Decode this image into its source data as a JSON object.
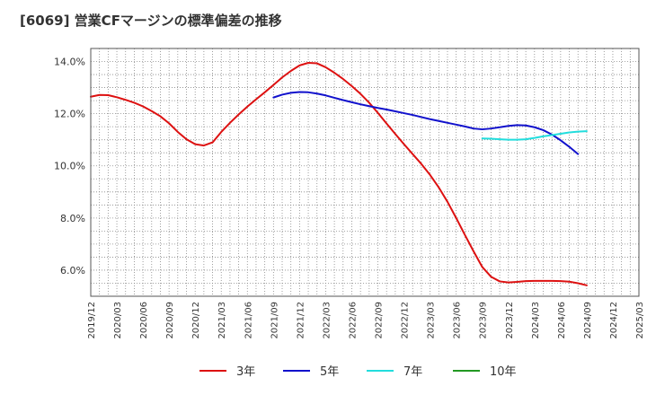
{
  "chart_data": {
    "type": "line",
    "title": "[6069]  営業CFマージンの標準偏差の推移",
    "xlabel": "",
    "ylabel": "",
    "ylim": [
      5.0,
      14.5
    ],
    "y_ticks": [
      "6.0%",
      "8.0%",
      "10.0%",
      "12.0%",
      "14.0%"
    ],
    "y_tick_values": [
      6,
      8,
      10,
      12,
      14
    ],
    "x_ticks": [
      "2019/12",
      "2020/03",
      "2020/06",
      "2020/09",
      "2020/12",
      "2021/03",
      "2021/06",
      "2021/09",
      "2021/12",
      "2022/03",
      "2022/06",
      "2022/09",
      "2022/12",
      "2023/03",
      "2023/06",
      "2023/09",
      "2023/12",
      "2024/03",
      "2024/06",
      "2024/09",
      "2024/12",
      "2025/03"
    ],
    "grid": true,
    "legend_position": "bottom",
    "series": [
      {
        "name": "3年",
        "color": "#dd1111",
        "points": [
          [
            "2019/12",
            12.65
          ],
          [
            "2020/01",
            12.72
          ],
          [
            "2020/02",
            12.71
          ],
          [
            "2020/03",
            12.63
          ],
          [
            "2020/04",
            12.53
          ],
          [
            "2020/05",
            12.42
          ],
          [
            "2020/06",
            12.28
          ],
          [
            "2020/07",
            12.1
          ],
          [
            "2020/08",
            11.9
          ],
          [
            "2020/09",
            11.63
          ],
          [
            "2020/10",
            11.3
          ],
          [
            "2020/11",
            11.02
          ],
          [
            "2020/12",
            10.83
          ],
          [
            "2021/01",
            10.78
          ],
          [
            "2021/02",
            10.9
          ],
          [
            "2021/03",
            11.3
          ],
          [
            "2021/04",
            11.65
          ],
          [
            "2021/05",
            11.97
          ],
          [
            "2021/06",
            12.27
          ],
          [
            "2021/07",
            12.55
          ],
          [
            "2021/08",
            12.82
          ],
          [
            "2021/09",
            13.1
          ],
          [
            "2021/10",
            13.39
          ],
          [
            "2021/11",
            13.64
          ],
          [
            "2021/12",
            13.85
          ],
          [
            "2022/01",
            13.95
          ],
          [
            "2022/02",
            13.93
          ],
          [
            "2022/03",
            13.78
          ],
          [
            "2022/04",
            13.57
          ],
          [
            "2022/05",
            13.33
          ],
          [
            "2022/06",
            13.06
          ],
          [
            "2022/07",
            12.76
          ],
          [
            "2022/08",
            12.42
          ],
          [
            "2022/09",
            12.03
          ],
          [
            "2022/10",
            11.62
          ],
          [
            "2022/11",
            11.22
          ],
          [
            "2022/12",
            10.83
          ],
          [
            "2023/01",
            10.45
          ],
          [
            "2023/02",
            10.07
          ],
          [
            "2023/03",
            9.65
          ],
          [
            "2023/04",
            9.17
          ],
          [
            "2023/05",
            8.62
          ],
          [
            "2023/06",
            8.0
          ],
          [
            "2023/07",
            7.35
          ],
          [
            "2023/08",
            6.72
          ],
          [
            "2023/09",
            6.12
          ],
          [
            "2023/10",
            5.75
          ],
          [
            "2023/11",
            5.57
          ],
          [
            "2023/12",
            5.53
          ],
          [
            "2024/01",
            5.55
          ],
          [
            "2024/02",
            5.58
          ],
          [
            "2024/03",
            5.59
          ],
          [
            "2024/04",
            5.59
          ],
          [
            "2024/05",
            5.59
          ],
          [
            "2024/06",
            5.58
          ],
          [
            "2024/07",
            5.56
          ],
          [
            "2024/08",
            5.5
          ],
          [
            "2024/09",
            5.42
          ]
        ]
      },
      {
        "name": "5年",
        "color": "#1111cc",
        "points": [
          [
            "2021/09",
            12.62
          ],
          [
            "2021/10",
            12.73
          ],
          [
            "2021/11",
            12.8
          ],
          [
            "2021/12",
            12.83
          ],
          [
            "2022/01",
            12.82
          ],
          [
            "2022/02",
            12.77
          ],
          [
            "2022/03",
            12.7
          ],
          [
            "2022/04",
            12.61
          ],
          [
            "2022/05",
            12.52
          ],
          [
            "2022/06",
            12.44
          ],
          [
            "2022/07",
            12.36
          ],
          [
            "2022/08",
            12.29
          ],
          [
            "2022/09",
            12.22
          ],
          [
            "2022/10",
            12.16
          ],
          [
            "2022/11",
            12.09
          ],
          [
            "2022/12",
            12.02
          ],
          [
            "2023/01",
            11.95
          ],
          [
            "2023/02",
            11.87
          ],
          [
            "2023/03",
            11.79
          ],
          [
            "2023/04",
            11.72
          ],
          [
            "2023/05",
            11.65
          ],
          [
            "2023/06",
            11.58
          ],
          [
            "2023/07",
            11.51
          ],
          [
            "2023/08",
            11.43
          ],
          [
            "2023/09",
            11.4
          ],
          [
            "2023/10",
            11.43
          ],
          [
            "2023/11",
            11.48
          ],
          [
            "2023/12",
            11.53
          ],
          [
            "2024/01",
            11.56
          ],
          [
            "2024/02",
            11.55
          ],
          [
            "2024/03",
            11.48
          ],
          [
            "2024/04",
            11.37
          ],
          [
            "2024/05",
            11.2
          ],
          [
            "2024/06",
            10.98
          ],
          [
            "2024/07",
            10.73
          ],
          [
            "2024/08",
            10.45
          ]
        ]
      },
      {
        "name": "7年",
        "color": "#22dddd",
        "points": [
          [
            "2023/09",
            11.05
          ],
          [
            "2023/10",
            11.04
          ],
          [
            "2023/11",
            11.02
          ],
          [
            "2023/12",
            11.0
          ],
          [
            "2024/01",
            11.0
          ],
          [
            "2024/02",
            11.02
          ],
          [
            "2024/03",
            11.07
          ],
          [
            "2024/04",
            11.13
          ],
          [
            "2024/05",
            11.18
          ],
          [
            "2024/06",
            11.23
          ],
          [
            "2024/07",
            11.28
          ],
          [
            "2024/08",
            11.31
          ],
          [
            "2024/09",
            11.33
          ]
        ]
      },
      {
        "name": "10年",
        "color": "#229922",
        "points": []
      }
    ]
  }
}
